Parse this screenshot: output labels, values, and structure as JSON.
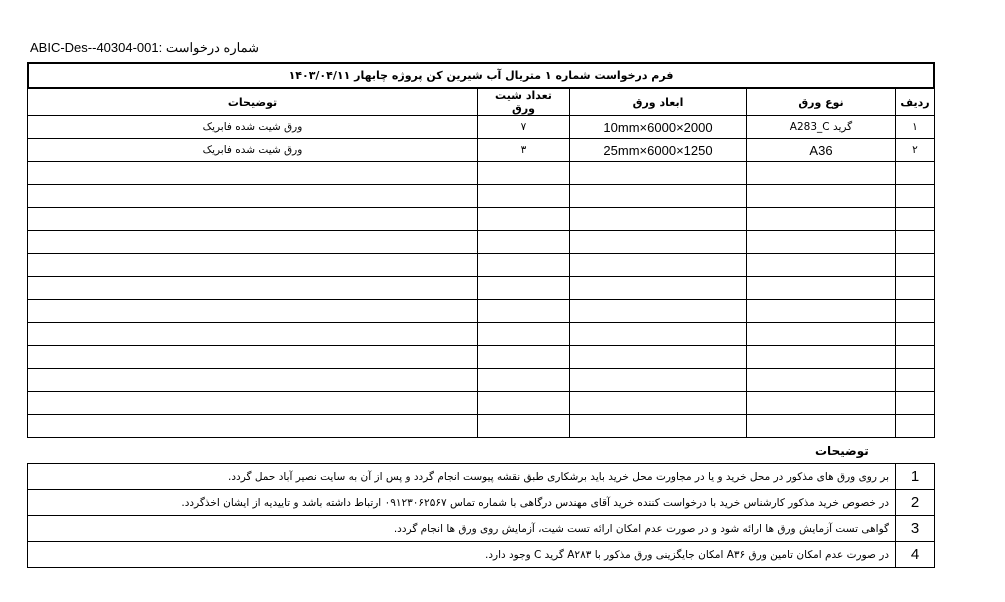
{
  "request_number": "ABIC-Des--40304-001: شماره درخواست",
  "title": "فرم درخواست شماره ۱ متریال آب شیرین کن پروژه چابهار ۱۴۰۳/۰۴/۱۱",
  "table": {
    "headers": [
      "ردیف",
      "نوع ورق",
      "ابعاد ورق",
      "تعداد شیت ورق",
      "توضیحات"
    ],
    "rows": [
      [
        "۱",
        "گرید A283_C",
        "2000×6000×10mm",
        "۷",
        "ورق شیت شده فابریک"
      ],
      [
        "۲",
        "A36",
        "1250×6000×25mm",
        "۳",
        "ورق شیت شده فابریک"
      ]
    ],
    "empty_rows": 12
  },
  "notes": {
    "heading": "توضیحات",
    "items": [
      {
        "n": "1",
        "text": "بر روی ورق های مذکور در محل خرید و یا در مجاورت محل خرید باید برشکاری طبق نقشه پیوست انجام گردد و پس از آن به سایت نصیر آباد حمل گردد."
      },
      {
        "n": "2",
        "text": "در خصوص خرید مذکور کارشناس خرید با درخواست کننده خرید آقای مهندس درگاهی با شماره تماس ۰۹۱۲۳۰۶۲۵۶۷ ارتباط داشته باشد و تاییدیه از ایشان اخذگردد."
      },
      {
        "n": "3",
        "text": "گواهی تست آزمایش ورق ها ارائه شود و در صورت عدم امکان ارائه تست شیت، آزمایش روی ورق ها انجام گردد."
      },
      {
        "n": "4",
        "text": "در صورت عدم امکان تامین ورق A۳۶ امکان جایگزینی ورق مذکور با A۲۸۳ گرید C وجود دارد."
      }
    ]
  }
}
